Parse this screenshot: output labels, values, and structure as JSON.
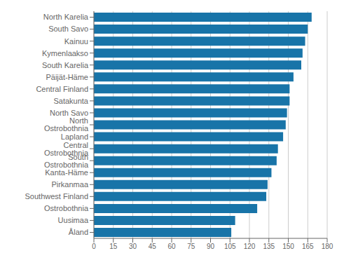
{
  "chart_data": {
    "type": "bar",
    "orientation": "horizontal",
    "categories": [
      "North Karelia",
      "South Savo",
      "Kainuu",
      "Kymenlaakso",
      "South Karelia",
      "Päijät-Häme",
      "Central Finland",
      "Satakunta",
      "North Savo",
      "North Ostrobothnia",
      "Lapland",
      "Central Ostrobothnia",
      "South Ostrobothnia",
      "Kanta-Häme",
      "Pirkanmaa",
      "Southwest Finland",
      "Ostrobothnia",
      "Uusimaa",
      "Åland"
    ],
    "values": [
      168,
      165,
      163,
      161,
      160,
      154,
      151,
      151,
      149,
      148,
      146,
      142,
      141,
      137,
      134,
      133,
      126,
      109,
      106
    ],
    "color": "#1874a8",
    "xlim": [
      0,
      180
    ],
    "xticks": [
      0,
      15,
      30,
      45,
      60,
      75,
      90,
      105,
      120,
      135,
      150,
      165,
      180
    ],
    "grid": true
  }
}
